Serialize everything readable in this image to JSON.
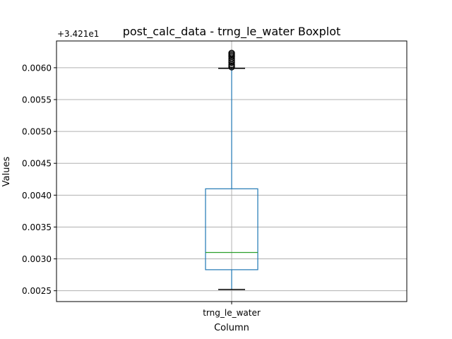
{
  "chart_data": {
    "type": "box",
    "title": "post_calc_data - trng_le_water Boxplot",
    "xlabel": "Column",
    "ylabel": "Values",
    "offset_label": "+3.421e1",
    "y_offset": 34.21,
    "categories": [
      "trng_le_water"
    ],
    "ylim": [
      0.00233,
      0.00642
    ],
    "yticks": [
      0.0025,
      0.003,
      0.0035,
      0.004,
      0.0045,
      0.005,
      0.0055,
      0.006
    ],
    "ytick_labels": [
      "0.0025",
      "0.0030",
      "0.0035",
      "0.0040",
      "0.0045",
      "0.0050",
      "0.0055",
      "0.0060"
    ],
    "grid": true,
    "boxes": [
      {
        "category": "trng_le_water",
        "whisker_low": 0.00252,
        "q1": 0.00283,
        "median": 0.0031,
        "q3": 0.0041,
        "whisker_high": 0.00599,
        "outliers": [
          0.00601,
          0.00603,
          0.00605,
          0.00608,
          0.00611,
          0.00614,
          0.00617,
          0.00619,
          0.00621,
          0.00623
        ]
      }
    ],
    "colors": {
      "box": "#1f77b4",
      "median": "#2ca02c",
      "whisker_cap": "#000000",
      "outlier": "#000000",
      "grid": "#b0b0b0"
    }
  }
}
